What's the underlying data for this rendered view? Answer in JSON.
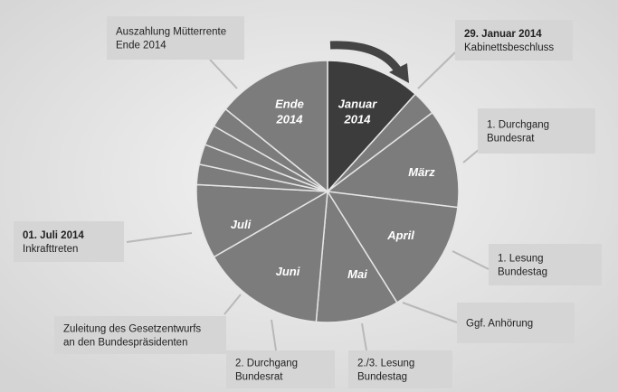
{
  "segments": [
    {
      "label": [
        "Januar",
        "2014"
      ]
    },
    {
      "label": [
        "März"
      ]
    },
    {
      "label": [
        "April"
      ]
    },
    {
      "label": [
        "Mai"
      ]
    },
    {
      "label": [
        "Juni"
      ]
    },
    {
      "label": [
        "Juli"
      ]
    },
    {
      "label": [
        "Ende",
        "2014"
      ]
    }
  ],
  "callouts": [
    {
      "lines": [
        "Auszahlung Mütterrente",
        "Ende 2014"
      ]
    },
    {
      "lines": [
        "29. Januar 2014",
        "Kabinettsbeschluss"
      ]
    },
    {
      "lines": [
        "1. Durchgang",
        "Bundesrat"
      ]
    },
    {
      "lines": [
        "1. Lesung",
        "Bundestag"
      ]
    },
    {
      "lines": [
        "Ggf. Anhörung"
      ]
    },
    {
      "lines": [
        "2./3. Lesung",
        "Bundestag"
      ]
    },
    {
      "lines": [
        "2. Durchgang",
        "Bundesrat"
      ]
    },
    {
      "lines": [
        "Zuleitung des Gesetzentwurfs",
        "an den Bundespräsidenten"
      ]
    },
    {
      "lines": [
        "01. Juli 2014",
        "Inkrafttreten"
      ]
    }
  ]
}
